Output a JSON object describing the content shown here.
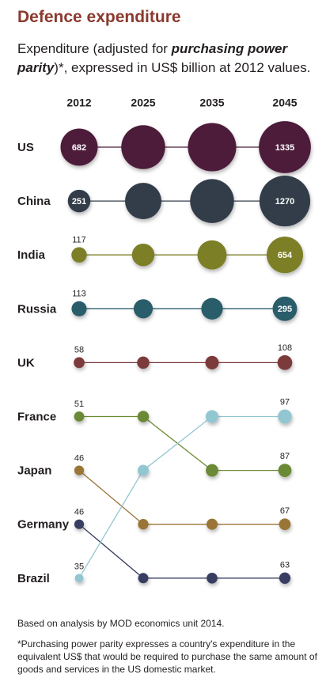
{
  "title": "Defence expenditure",
  "subtitle": [
    "Expenditure (adjusted for ",
    "purchasing power parity",
    ")*, expressed in US$ billion at 2012 values."
  ],
  "chart_data": {
    "type": "bubble",
    "categories": [
      "2012",
      "2025",
      "2035",
      "2045"
    ],
    "series": [
      {
        "name": "US",
        "color": "#4d1d3a",
        "values": [
          682,
          950,
          1150,
          1335
        ]
      },
      {
        "name": "China",
        "color": "#333e4a",
        "values": [
          251,
          650,
          950,
          1270
        ]
      },
      {
        "name": "India",
        "color": "#7b7f26",
        "values": [
          117,
          250,
          420,
          654
        ]
      },
      {
        "name": "Russia",
        "color": "#2a5d6a",
        "values": [
          113,
          180,
          230,
          295
        ]
      },
      {
        "name": "UK",
        "color": "#7b3a3b",
        "values": [
          58,
          75,
          90,
          108
        ]
      },
      {
        "name": "France",
        "color": "#6a8a34",
        "values": [
          51,
          65,
          78,
          87
        ]
      },
      {
        "name": "Japan",
        "color": "#9a7436",
        "values": [
          46,
          55,
          61,
          67
        ]
      },
      {
        "name": "Germany",
        "color": "#393e62",
        "values": [
          46,
          52,
          58,
          63
        ]
      },
      {
        "name": "Brazil",
        "color": "#92c6d0",
        "values": [
          35,
          60,
          80,
          97
        ]
      }
    ]
  },
  "notes": [
    "Based on analysis by MOD economics unit 2014.",
    "*Purchasing power parity expresses a country's expenditure in the equivalent US$ that would be required to purchase the same amount of goods and services in the US domestic market."
  ]
}
